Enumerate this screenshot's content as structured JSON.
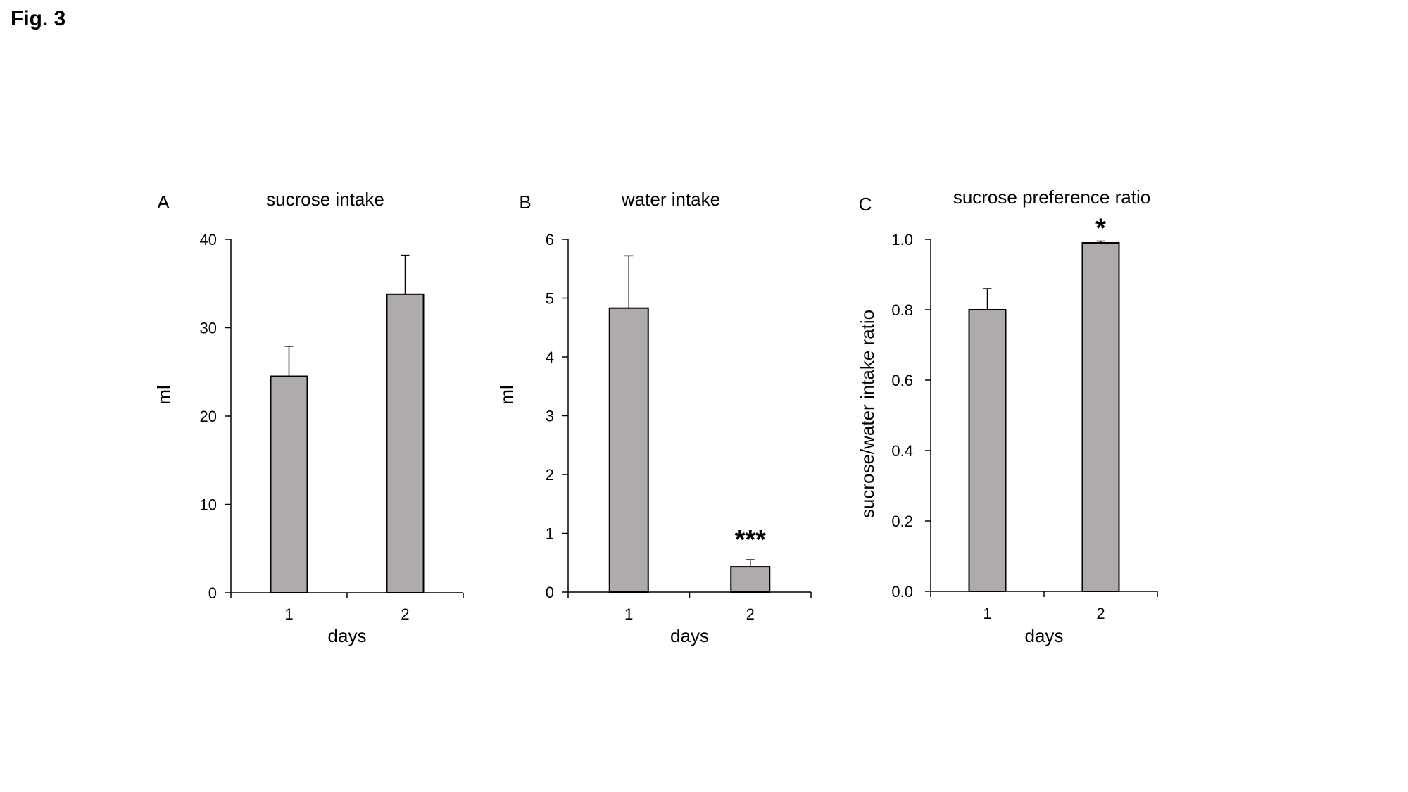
{
  "figure": {
    "label": "Fig. 3"
  },
  "colors": {
    "bar_fill": "#afabab",
    "bar_stroke": "#000000",
    "axis": "#000000"
  },
  "chart_data": [
    {
      "type": "bar",
      "panel": "A",
      "title": "sucrose intake",
      "xlabel": "days",
      "ylabel": "ml",
      "categories": [
        "1",
        "2"
      ],
      "values": [
        24.5,
        33.8
      ],
      "errors": [
        3.4,
        4.4
      ],
      "ylim": [
        0,
        40
      ],
      "yticks": [
        0,
        10,
        20,
        30,
        40
      ],
      "ytick_labels": [
        "0",
        "10",
        "20",
        "30",
        "40"
      ],
      "annotations": [
        "",
        ""
      ]
    },
    {
      "type": "bar",
      "panel": "B",
      "title": "water intake",
      "xlabel": "days",
      "ylabel": "ml",
      "categories": [
        "1",
        "2"
      ],
      "values": [
        4.83,
        0.43
      ],
      "errors": [
        0.89,
        0.12
      ],
      "ylim": [
        0,
        6
      ],
      "yticks": [
        0,
        1,
        2,
        3,
        4,
        5,
        6
      ],
      "ytick_labels": [
        "0",
        "1",
        "2",
        "3",
        "4",
        "5",
        "6"
      ],
      "annotations": [
        "",
        "***"
      ]
    },
    {
      "type": "bar",
      "panel": "C",
      "title": "sucrose preference ratio",
      "xlabel": "days",
      "ylabel": "sucrose/water intake ratio",
      "categories": [
        "1",
        "2"
      ],
      "values": [
        0.8,
        0.99
      ],
      "errors": [
        0.06,
        0.005
      ],
      "ylim": [
        0,
        1
      ],
      "yticks": [
        0,
        0.2,
        0.4,
        0.6,
        0.8,
        1.0
      ],
      "ytick_labels": [
        "0.0",
        "0.2",
        "0.4",
        "0.6",
        "0.8",
        "1.0"
      ],
      "annotations": [
        "",
        "*"
      ]
    }
  ]
}
